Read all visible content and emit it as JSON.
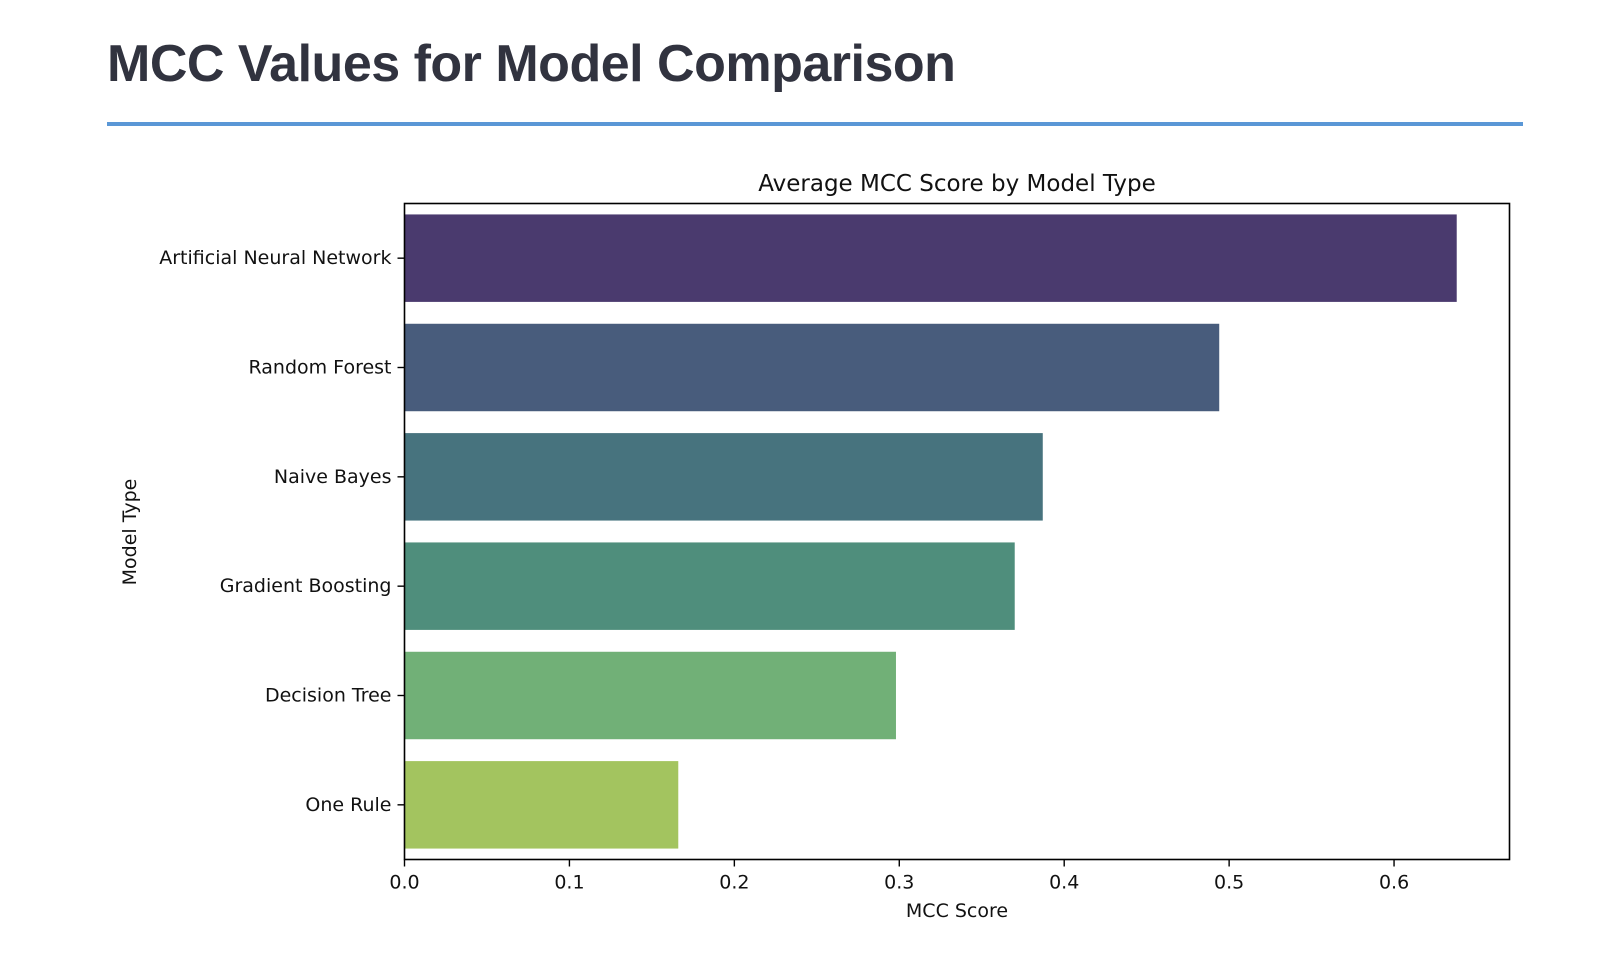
{
  "page": {
    "heading": "MCC Values for Model Comparison",
    "accent_color": "#5a97d6"
  },
  "chart_data": {
    "type": "bar",
    "orientation": "horizontal",
    "title": "Average MCC Score by Model Type",
    "xlabel": "MCC Score",
    "ylabel": "Model Type",
    "xlim": [
      0,
      0.67
    ],
    "xticks": [
      0.0,
      0.1,
      0.2,
      0.3,
      0.4,
      0.5,
      0.6
    ],
    "xtick_labels": [
      "0.0",
      "0.1",
      "0.2",
      "0.3",
      "0.4",
      "0.5",
      "0.6"
    ],
    "grid": false,
    "categories": [
      "Artificial Neural Network",
      "Random Forest",
      "Naive Bayes",
      "Gradient Boosting",
      "Decision Tree",
      "One Rule"
    ],
    "values": [
      0.638,
      0.494,
      0.387,
      0.37,
      0.298,
      0.166
    ],
    "colors": [
      "#4a3a6e",
      "#485c7c",
      "#47737e",
      "#4f8e7c",
      "#71b077",
      "#a3c45f"
    ]
  }
}
